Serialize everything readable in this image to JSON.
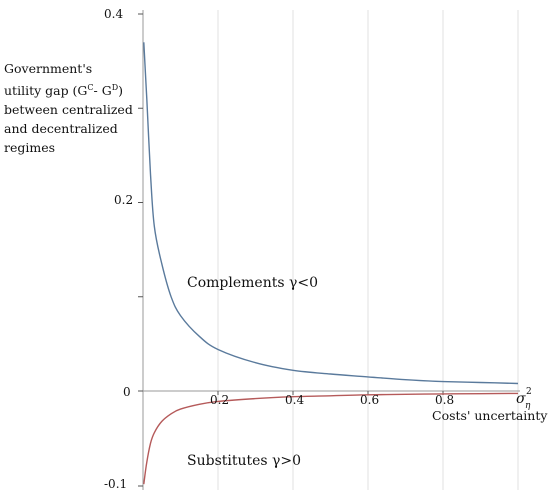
{
  "chart_data": {
    "type": "line",
    "ylabel": {
      "line1": "Government's",
      "line2_prefix": "utility gap (G",
      "sup1": "C",
      "mid": "- G",
      "sup2": "D",
      "line2_suffix": ")",
      "line3": "between centralized",
      "line4": "and decentralized",
      "line5": "regimes"
    },
    "xlabel": "Costs' uncertainty",
    "x_axis_symbol": "σ",
    "x_axis_symbol_sub": "η",
    "x_axis_symbol_sup": "2",
    "xlim": [
      0,
      1.0
    ],
    "ylim": [
      -0.1,
      0.4
    ],
    "x_ticks": [
      "0.2",
      "0.4",
      "0.6",
      "0.8"
    ],
    "x_tick_values": [
      0.2,
      0.4,
      0.6,
      0.8
    ],
    "y_ticks": [
      "0.4",
      "0.2",
      "0",
      "-0.1"
    ],
    "y_tick_values": [
      0.4,
      0.2,
      0,
      -0.1
    ],
    "y_minor_ticks": [
      0.3,
      0.1
    ],
    "grid": "vertical",
    "series": [
      {
        "name": "Complements γ<0",
        "color": "#5a7a9c",
        "x": [
          0.002,
          0.01,
          0.02,
          0.03,
          0.05,
          0.075,
          0.1,
          0.15,
          0.2,
          0.3,
          0.4,
          0.5,
          0.6,
          0.7,
          0.8,
          0.9,
          1.0
        ],
        "y": [
          0.37,
          0.31,
          0.23,
          0.175,
          0.135,
          0.1,
          0.08,
          0.058,
          0.044,
          0.03,
          0.022,
          0.018,
          0.015,
          0.012,
          0.01,
          0.009,
          0.008
        ]
      },
      {
        "name": "Substitutes γ>0",
        "color": "#b55a5a",
        "x": [
          0.002,
          0.01,
          0.02,
          0.03,
          0.05,
          0.075,
          0.1,
          0.15,
          0.2,
          0.3,
          0.4,
          0.5,
          0.6,
          0.7,
          0.8,
          0.9,
          1.0
        ],
        "y": [
          -0.098,
          -0.075,
          -0.055,
          -0.044,
          -0.032,
          -0.024,
          -0.019,
          -0.014,
          -0.011,
          -0.008,
          -0.006,
          -0.005,
          -0.004,
          -0.0035,
          -0.003,
          -0.0028,
          -0.0025
        ]
      }
    ]
  }
}
